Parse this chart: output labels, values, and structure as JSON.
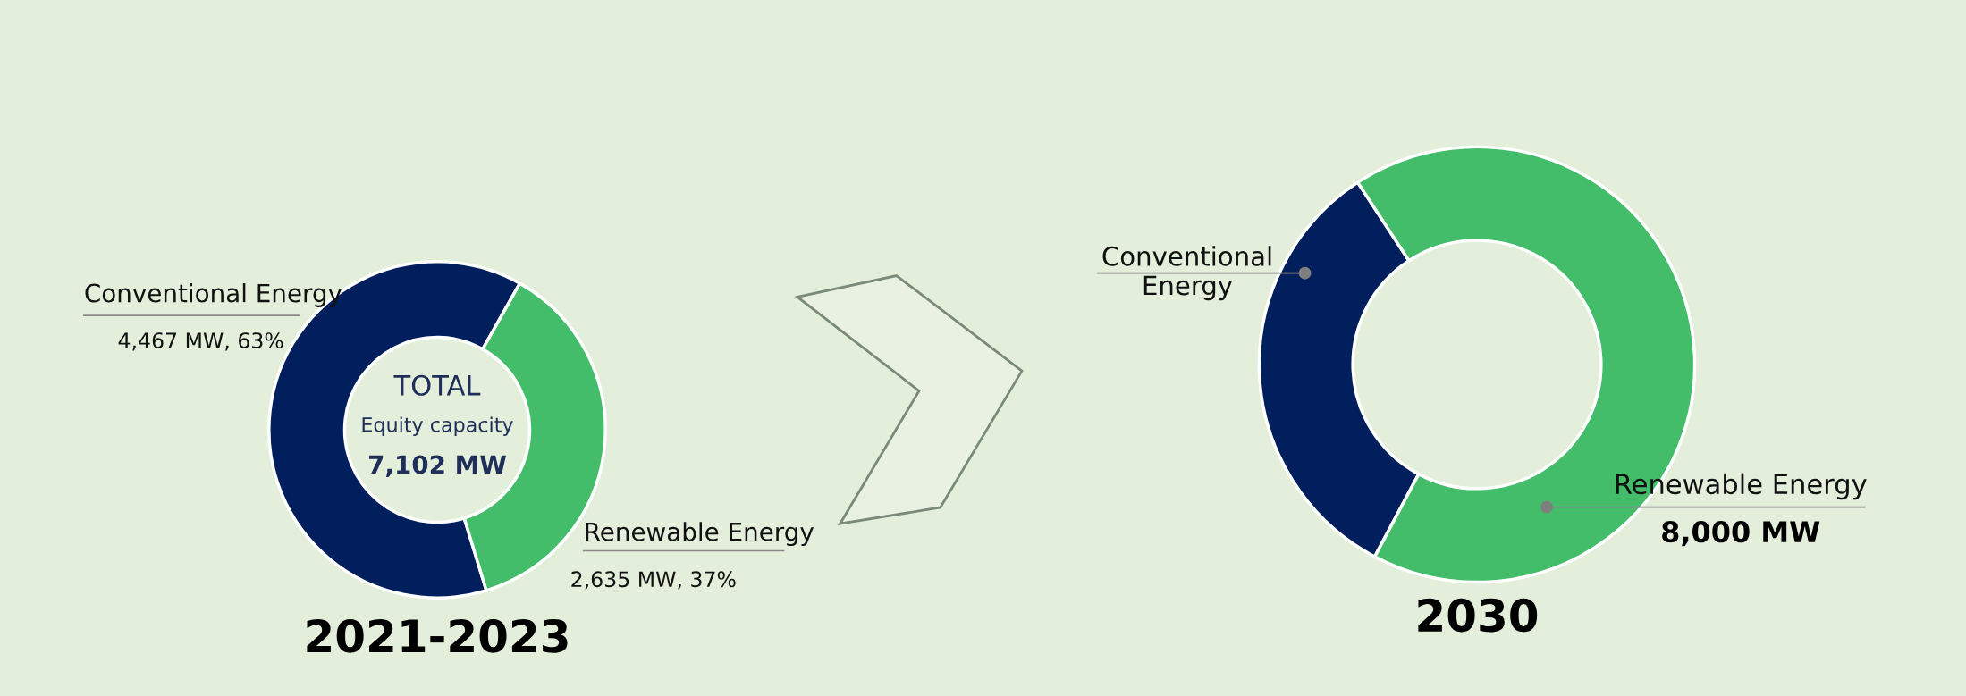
{
  "chart_data": [
    {
      "type": "donut",
      "title": "2021-2023",
      "categories": [
        "Conventional Energy",
        "Renewable Energy"
      ],
      "values": [
        4467,
        2635
      ],
      "colors": [
        "#001f5c",
        "#44bd6b"
      ],
      "value_labels": [
        "4,467 MW, 63%",
        "2,635 MW, 37%"
      ],
      "annotations": [
        "TOTAL",
        "Equity capacity",
        "7,102 MW"
      ]
    },
    {
      "type": "donut",
      "title": "2030",
      "categories": [
        "Conventional\nEnergy",
        "Renewable Energy"
      ],
      "values": [
        33,
        67
      ],
      "colors": [
        "#001f5c",
        "#44bd6b"
      ],
      "annotations": [
        "8,000 MW"
      ]
    }
  ]
}
